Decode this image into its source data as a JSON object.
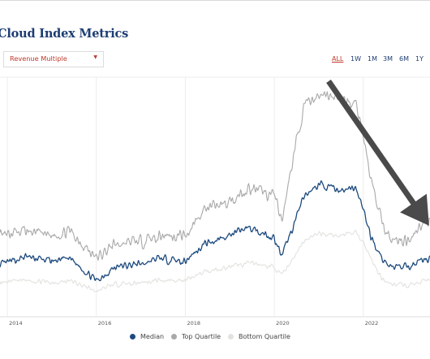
{
  "header": {
    "title": "Cloud Index Metrics"
  },
  "metric_select": {
    "value": "Revenue Multiple"
  },
  "range_buttons": [
    "ALL",
    "1W",
    "1M",
    "3M",
    "6M",
    "1Y"
  ],
  "active_range": "ALL",
  "colors": {
    "median": "#1d4a7e",
    "top_quartile": "#a9a9a9",
    "bottom_quartile": "#e2e2de",
    "accent": "#c0392b",
    "arrow": "#4a4a4a"
  },
  "chart_data": {
    "type": "line",
    "x_ticks": [
      "2014",
      "2016",
      "2018",
      "2020",
      "2022"
    ],
    "xlim": [
      "2013-11",
      "2023-07"
    ],
    "ylim": [
      0,
      28
    ],
    "grid": "vertical",
    "legend": "bottom",
    "series": [
      {
        "name": "Median",
        "x": [
          "2013-11",
          "2014-06",
          "2015-01",
          "2015-06",
          "2016-01",
          "2016-06",
          "2017-01",
          "2017-06",
          "2018-01",
          "2018-06",
          "2019-01",
          "2019-06",
          "2020-01",
          "2020-03",
          "2020-06",
          "2020-09",
          "2021-01",
          "2021-06",
          "2021-11",
          "2022-01",
          "2022-03",
          "2022-06",
          "2022-09",
          "2023-01",
          "2023-04",
          "2023-07"
        ],
        "values": [
          6.0,
          7.0,
          6.5,
          6.8,
          4.2,
          5.8,
          6.2,
          6.8,
          6.5,
          8.5,
          9.5,
          10.5,
          9.2,
          7.0,
          10.5,
          14.0,
          15.5,
          14.8,
          15.0,
          12.5,
          9.5,
          6.8,
          5.8,
          5.8,
          6.5,
          6.8
        ]
      },
      {
        "name": "Top Quartile",
        "x": [
          "2013-11",
          "2014-06",
          "2015-01",
          "2015-06",
          "2016-01",
          "2016-06",
          "2017-01",
          "2017-06",
          "2018-01",
          "2018-06",
          "2019-01",
          "2019-06",
          "2020-01",
          "2020-03",
          "2020-06",
          "2020-09",
          "2021-01",
          "2021-06",
          "2021-11",
          "2022-01",
          "2022-03",
          "2022-06",
          "2022-09",
          "2023-01",
          "2023-04",
          "2023-07"
        ],
        "values": [
          9.5,
          10.0,
          9.5,
          10.0,
          6.8,
          8.5,
          8.8,
          9.5,
          9.5,
          12.5,
          13.5,
          15.0,
          14.2,
          11.0,
          18.5,
          24.5,
          26.0,
          25.5,
          25.0,
          21.5,
          16.0,
          11.0,
          8.8,
          9.0,
          10.5,
          11.0
        ]
      },
      {
        "name": "Bottom Quartile",
        "x": [
          "2013-11",
          "2014-06",
          "2015-01",
          "2015-06",
          "2016-01",
          "2016-06",
          "2017-01",
          "2017-06",
          "2018-01",
          "2018-06",
          "2019-01",
          "2019-06",
          "2020-01",
          "2020-03",
          "2020-06",
          "2020-09",
          "2021-01",
          "2021-06",
          "2021-11",
          "2022-01",
          "2022-03",
          "2022-06",
          "2022-09",
          "2023-01",
          "2023-04",
          "2023-07"
        ],
        "values": [
          4.0,
          4.3,
          4.0,
          4.2,
          3.0,
          3.8,
          4.0,
          4.3,
          4.2,
          5.3,
          5.8,
          6.3,
          5.8,
          4.8,
          6.8,
          8.8,
          9.8,
          9.5,
          9.8,
          8.8,
          6.8,
          4.5,
          3.8,
          3.6,
          4.0,
          4.2
        ]
      }
    ],
    "annotations": [
      {
        "type": "arrow",
        "description": "downward arrow pointing to recent decline"
      }
    ]
  }
}
